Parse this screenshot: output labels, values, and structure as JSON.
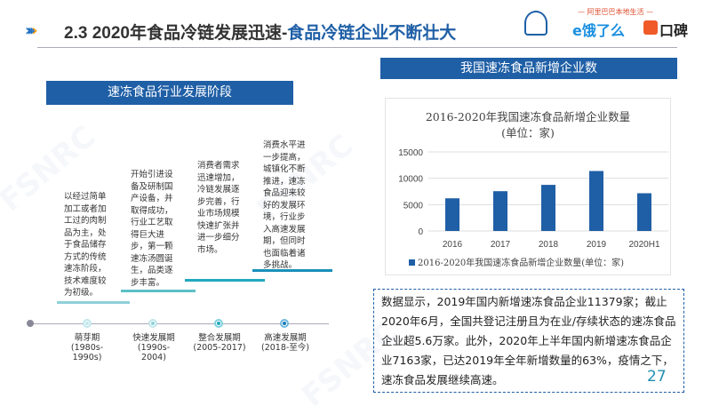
{
  "header": {
    "title_prefix": "2.3 2020年食品冷链发展迅速-",
    "title_highlight": "食品冷链企业不断壮大",
    "logo_tagline": "— 阿里巴巴本地生活 —",
    "logo_eleme": "饿了么",
    "logo_koubei": "口碑"
  },
  "watermark": "FSNRC",
  "left": {
    "heading": "速冻食品行业发展阶段",
    "stages": [
      {
        "name": "萌芽期",
        "period": "(1980s-1990s)",
        "description": "以经过简单加工或者加工过的肉制品为主，处于食品储存方式的传统速冻阶段，技术难度较为初级。"
      },
      {
        "name": "快速发展期",
        "period": "(1990s-2004)",
        "description": "开始引进设备及研制国产设备，并取得成功，行业工艺取得巨大进步，第一颗速冻汤圆诞生，品类逐步丰富。"
      },
      {
        "name": "整合发展期",
        "period": "(2005-2017)",
        "description": "消费者需求迅速增加，冷链发展逐步完善，行业市场规模快速扩张并进一步细分市场。"
      },
      {
        "name": "高速发展期",
        "period": "(2018-至今)",
        "description": "消费水平进一步提高，城镇化不断推进，速冻食品迎来较好的发展环境，行业步入高速发展期，但同时也面临着诸多挑战。"
      }
    ]
  },
  "right": {
    "heading": "我国速冻食品新增企业数"
  },
  "chart_data": {
    "type": "bar",
    "title": "2016-2020年我国速冻食品新增企业数量",
    "subtitle": "(单位：家)",
    "categories": [
      "2016",
      "2017",
      "2018",
      "2019",
      "2020H1"
    ],
    "series": [
      {
        "name": "2016-2020年我国速冻食品新增企业数量(单位：家)",
        "values": [
          6200,
          7550,
          8750,
          11379,
          7163
        ]
      }
    ],
    "yticks": [
      0,
      5000,
      10000,
      15000
    ],
    "ylim": [
      0,
      15000
    ],
    "grid": true,
    "legend": "bottom",
    "color": "#1f5fa6"
  },
  "info_text": "数据显示，2019年国内新增速冻食品企业11379家；截止2020年6月，全国共登记注册且为在业/存续状态的速冻食品企业超5.6万家。此外，2020年上半年国内新增速冻食品企业7163家，已达2019年全年新增数量的63%，疫情之下，速冻食品发展继续高速。",
  "page_number": "27"
}
